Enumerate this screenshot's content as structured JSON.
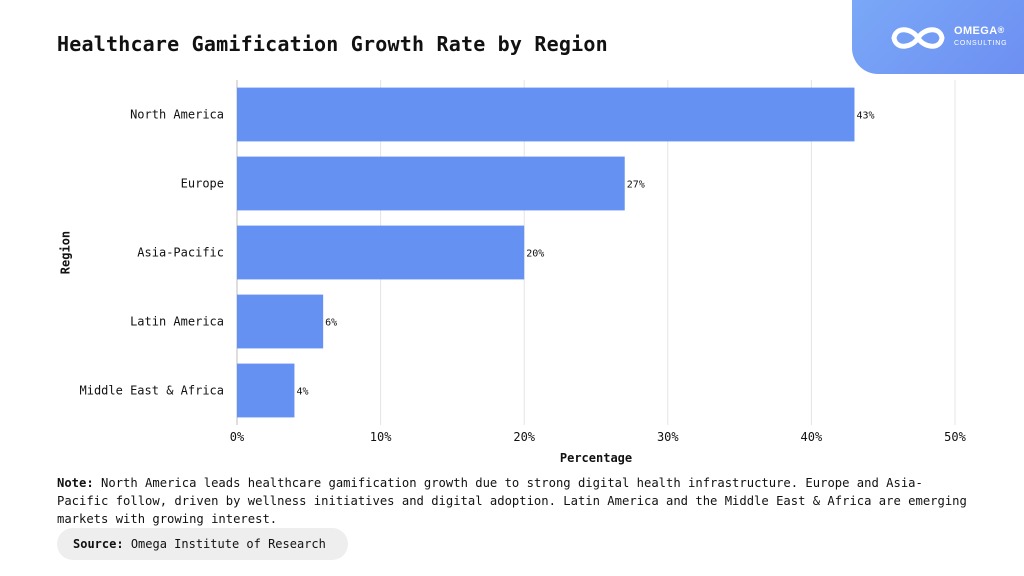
{
  "header": {
    "title": "Healthcare Gamification Growth Rate by Region",
    "logo": {
      "name": "OMEGA",
      "mark": "®",
      "sub": "CONSULTING",
      "icon": "infinity-logo-icon"
    }
  },
  "chart_data": {
    "type": "bar",
    "orientation": "horizontal",
    "categories": [
      "North America",
      "Europe",
      "Asia-Pacific",
      "Latin America",
      "Middle East & Africa"
    ],
    "values": [
      43,
      27,
      20,
      6,
      4
    ],
    "value_labels": [
      "43%",
      "27%",
      "20%",
      "6%",
      "4%"
    ],
    "xlabel": "Percentage",
    "ylabel": "Region",
    "xlim": [
      0,
      50
    ],
    "xticks": [
      0,
      10,
      20,
      30,
      40,
      50
    ],
    "xtick_labels": [
      "0%",
      "10%",
      "20%",
      "30%",
      "40%",
      "50%"
    ],
    "grid": "vertical",
    "bar_color": "#6592f2"
  },
  "note": {
    "label": "Note:",
    "text": "North America leads healthcare gamification growth due to strong digital health infrastructure. Europe and Asia-Pacific follow, driven by wellness initiatives and digital adoption. Latin America and the Middle East & Africa are emerging markets with growing interest."
  },
  "source": {
    "label": "Source:",
    "text": "Omega Institute of Research"
  }
}
